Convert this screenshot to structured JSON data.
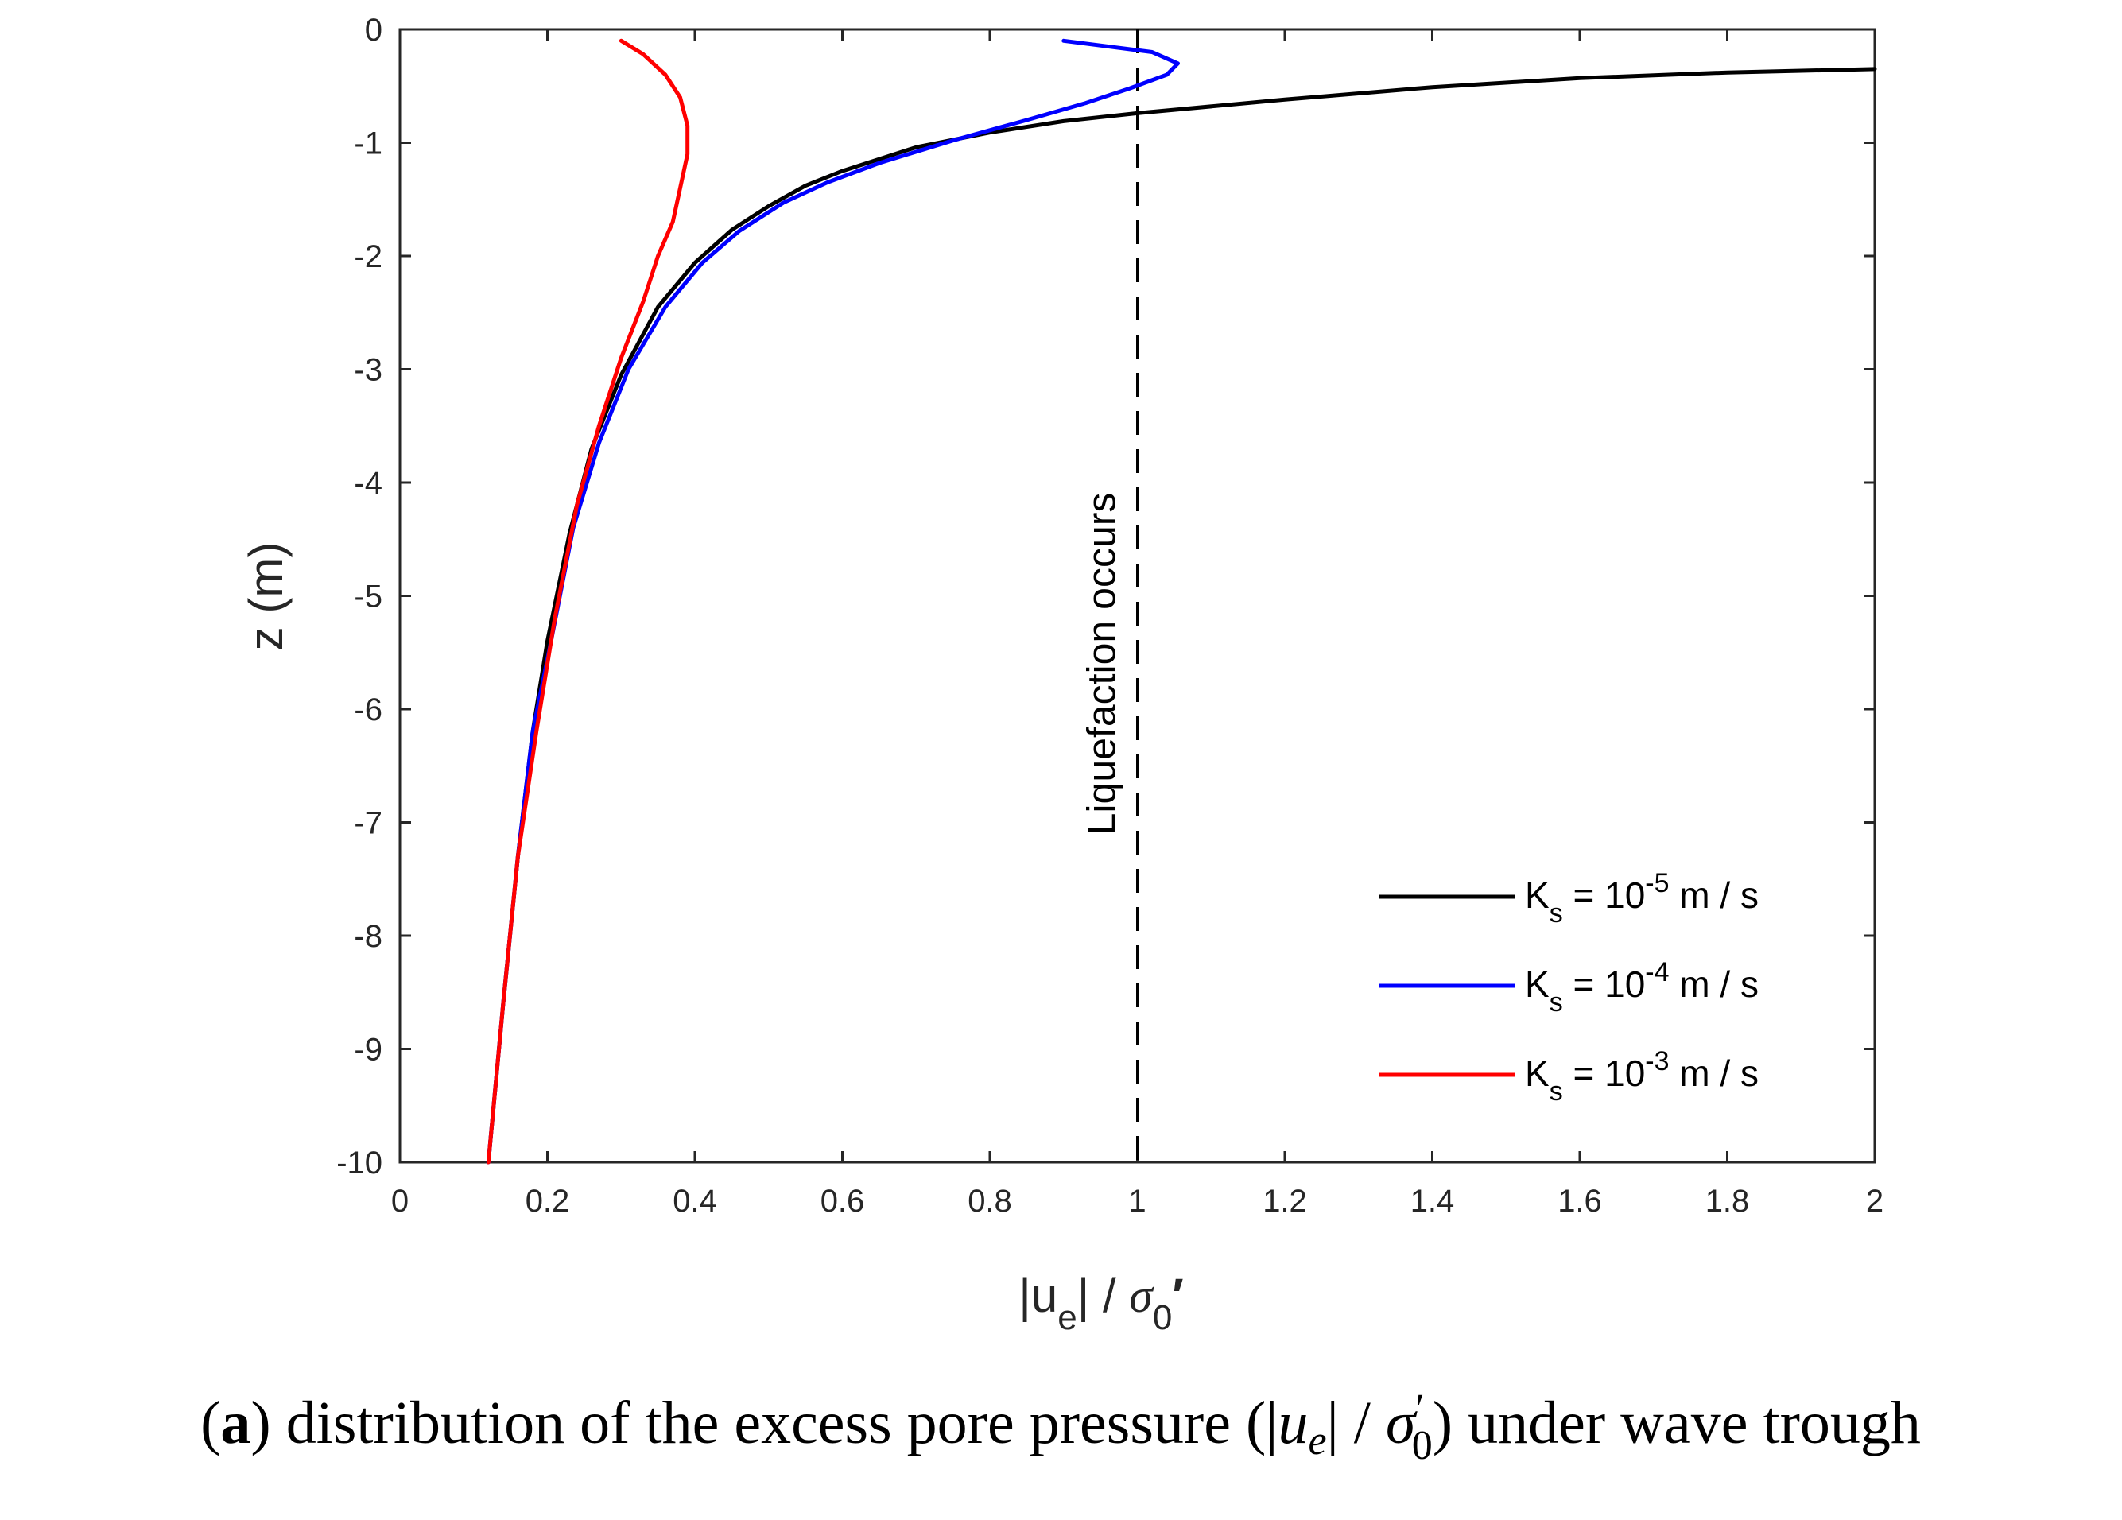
{
  "chart_data": {
    "type": "line",
    "title": "",
    "xlabel": {
      "pre": "|u",
      "sub": "e",
      "mid": "| / ",
      "sigma": "σ",
      "sigsub": "0",
      "prime": "′"
    },
    "ylabel": "z (m)",
    "xlim": [
      0,
      2
    ],
    "ylim": [
      -10,
      0
    ],
    "xticks": [
      0,
      0.2,
      0.4,
      0.6,
      0.8,
      1,
      1.2,
      1.4,
      1.6,
      1.8,
      2
    ],
    "xtick_labels": [
      "0",
      "0.2",
      "0.4",
      "0.6",
      "0.8",
      "1",
      "1.2",
      "1.4",
      "1.6",
      "1.8",
      "2"
    ],
    "yticks": [
      0,
      -1,
      -2,
      -3,
      -4,
      -5,
      -6,
      -7,
      -8,
      -9,
      -10
    ],
    "ytick_labels": [
      "0",
      "-1",
      "-2",
      "-3",
      "-4",
      "-5",
      "-6",
      "-7",
      "-8",
      "-9",
      "-10"
    ],
    "grid": false,
    "legend_position": "bottom-right",
    "series": [
      {
        "name": "Ks = 10-5 m / s",
        "label": {
          "pre": "K",
          "sub": "s",
          "mid": " = 10",
          "sup": "-5",
          "post": " m / s"
        },
        "color": "#000000",
        "points": [
          [
            2.0,
            -0.35
          ],
          [
            1.8,
            -0.38
          ],
          [
            1.6,
            -0.43
          ],
          [
            1.4,
            -0.51
          ],
          [
            1.2,
            -0.62
          ],
          [
            1.0,
            -0.74
          ],
          [
            0.9,
            -0.81
          ],
          [
            0.8,
            -0.91
          ],
          [
            0.7,
            -1.04
          ],
          [
            0.6,
            -1.25
          ],
          [
            0.55,
            -1.38
          ],
          [
            0.5,
            -1.56
          ],
          [
            0.45,
            -1.77
          ],
          [
            0.4,
            -2.06
          ],
          [
            0.35,
            -2.45
          ],
          [
            0.3,
            -3.05
          ],
          [
            0.26,
            -3.7
          ],
          [
            0.23,
            -4.45
          ],
          [
            0.2,
            -5.4
          ],
          [
            0.18,
            -6.2
          ],
          [
            0.16,
            -7.3
          ],
          [
            0.14,
            -8.6
          ],
          [
            0.12,
            -10.0
          ]
        ]
      },
      {
        "name": "Ks = 10-4 m / s",
        "label": {
          "pre": "K",
          "sub": "s",
          "mid": " = 10",
          "sup": "-4",
          "post": " m / s"
        },
        "color": "#0000FF",
        "points": [
          [
            0.9,
            -0.1
          ],
          [
            1.02,
            -0.2
          ],
          [
            1.055,
            -0.3
          ],
          [
            1.04,
            -0.4
          ],
          [
            0.99,
            -0.52
          ],
          [
            0.93,
            -0.65
          ],
          [
            0.85,
            -0.8
          ],
          [
            0.75,
            -0.98
          ],
          [
            0.65,
            -1.18
          ],
          [
            0.58,
            -1.35
          ],
          [
            0.52,
            -1.53
          ],
          [
            0.46,
            -1.78
          ],
          [
            0.41,
            -2.06
          ],
          [
            0.36,
            -2.45
          ],
          [
            0.31,
            -3.0
          ],
          [
            0.27,
            -3.65
          ],
          [
            0.235,
            -4.4
          ],
          [
            0.205,
            -5.4
          ],
          [
            0.18,
            -6.2
          ],
          [
            0.16,
            -7.3
          ],
          [
            0.14,
            -8.6
          ],
          [
            0.12,
            -10.0
          ]
        ]
      },
      {
        "name": "Ks = 10-3 m / s",
        "label": {
          "pre": "K",
          "sub": "s",
          "mid": " = 10",
          "sup": "-3",
          "post": " m / s"
        },
        "color": "#FF0000",
        "points": [
          [
            0.3,
            -0.1
          ],
          [
            0.33,
            -0.22
          ],
          [
            0.36,
            -0.4
          ],
          [
            0.38,
            -0.6
          ],
          [
            0.39,
            -0.85
          ],
          [
            0.39,
            -1.1
          ],
          [
            0.38,
            -1.4
          ],
          [
            0.37,
            -1.7
          ],
          [
            0.35,
            -2.0
          ],
          [
            0.33,
            -2.4
          ],
          [
            0.3,
            -2.9
          ],
          [
            0.27,
            -3.5
          ],
          [
            0.24,
            -4.2
          ],
          [
            0.21,
            -5.2
          ],
          [
            0.185,
            -6.2
          ],
          [
            0.16,
            -7.3
          ],
          [
            0.14,
            -8.6
          ],
          [
            0.12,
            -10.0
          ]
        ]
      }
    ],
    "reference_line": {
      "x": 1,
      "style": "dashed",
      "color": "#000000"
    },
    "annotations": [
      {
        "text": "Liquefaction occurs",
        "x": 0.97,
        "y": -5.6,
        "rotation": "vertical"
      }
    ]
  },
  "caption": {
    "open": "(",
    "bold": "a",
    "text1": ") distribution of the excess pore pressure (|",
    "u": "u",
    "usub": "e",
    "text2": "| / ",
    "sigma": "σ",
    "sigsup": "′",
    "sigsub": "0",
    "text3": ") under wave trough"
  }
}
